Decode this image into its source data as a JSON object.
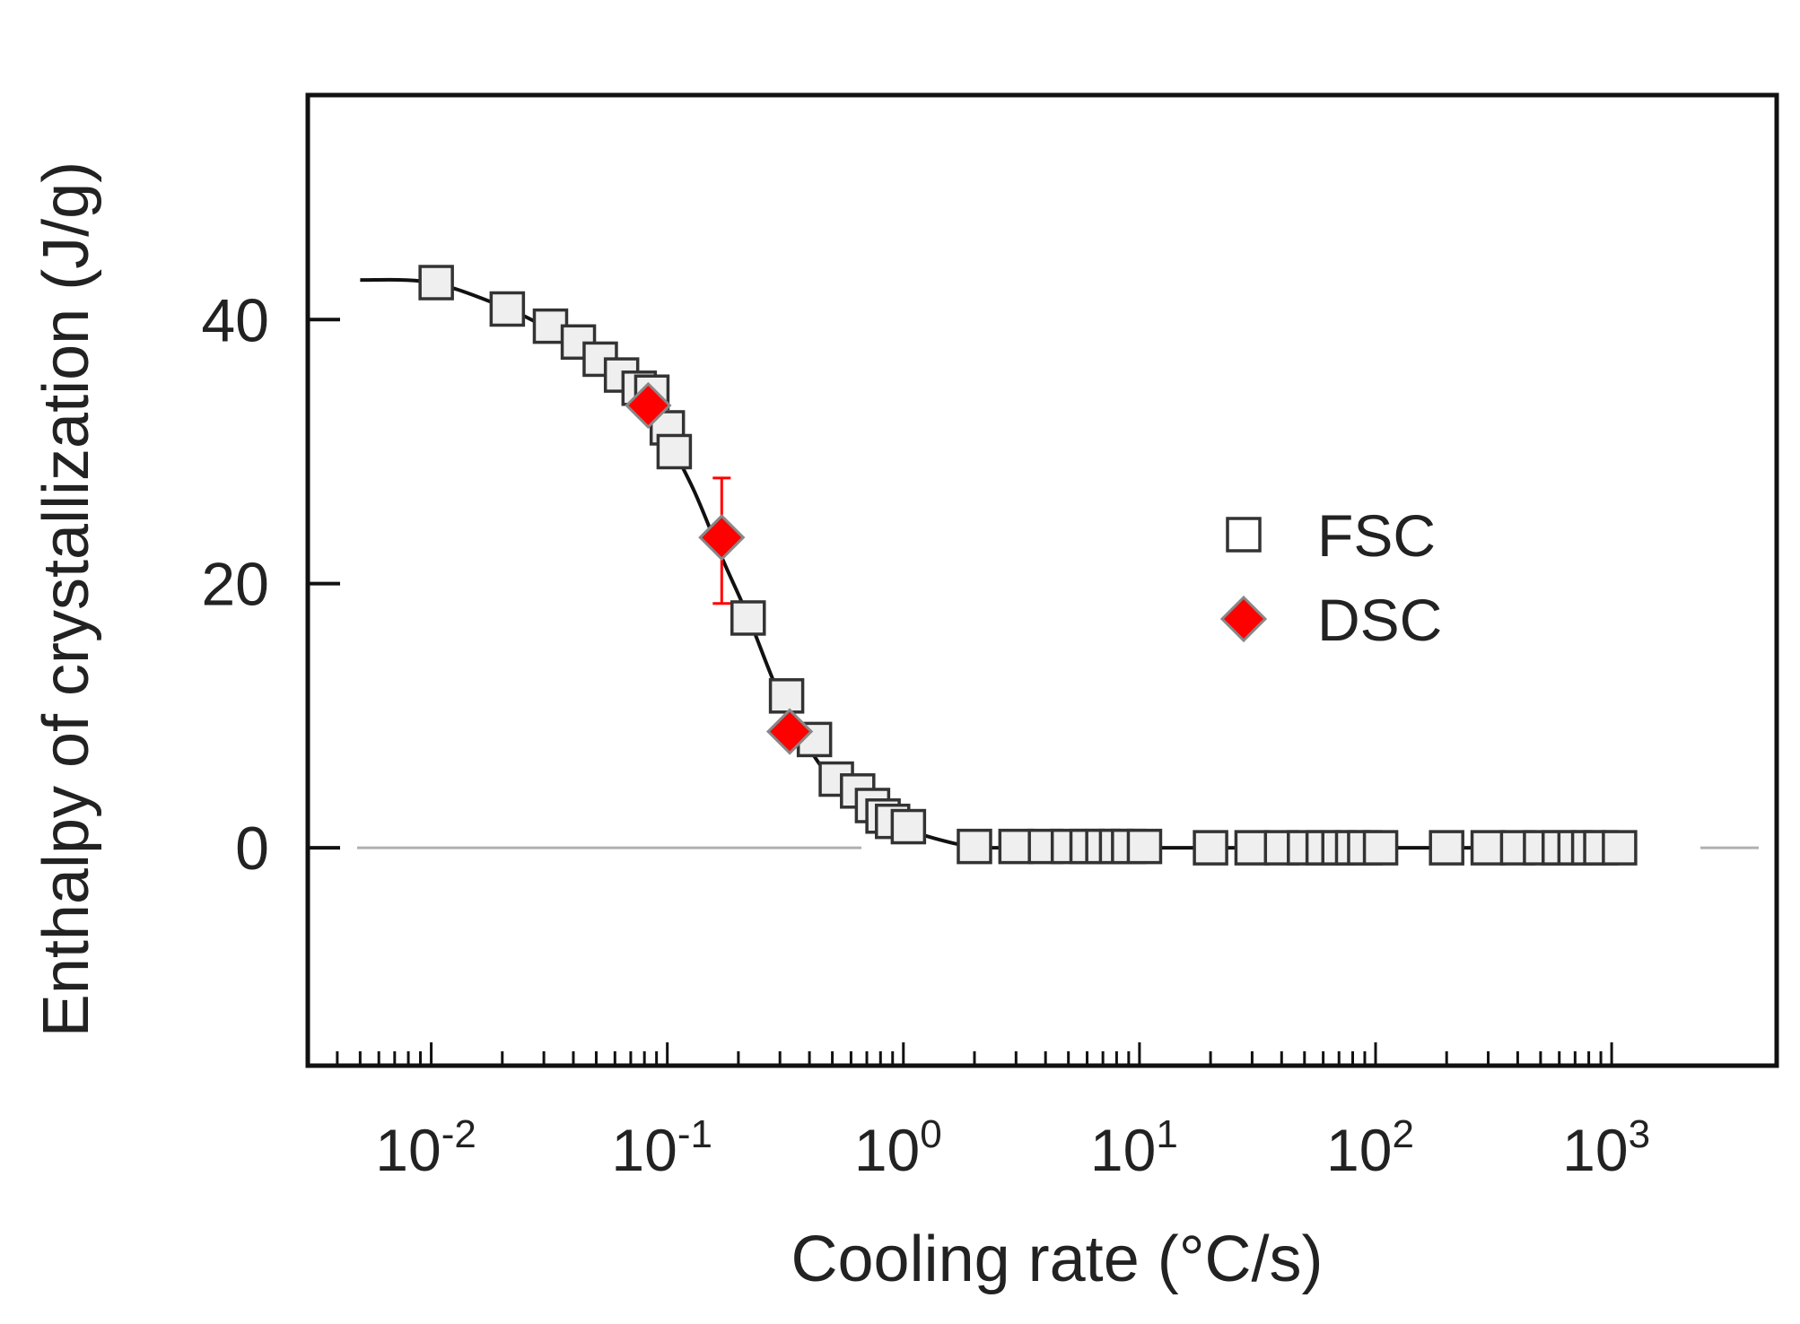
{
  "chart_data": {
    "type": "scatter",
    "xscale": "log",
    "xlabel": "Cooling rate (°C/s)",
    "ylabel": "Enthalpy of crystallization (J/g)",
    "xlim": [
      0.003,
      5000
    ],
    "ylim": [
      -16.5,
      57
    ],
    "x_ticks": [
      {
        "value": 0.01,
        "base": "10",
        "exp": "-2"
      },
      {
        "value": 0.1,
        "base": "10",
        "exp": "-1"
      },
      {
        "value": 1,
        "base": "10",
        "exp": "0"
      },
      {
        "value": 10,
        "base": "10",
        "exp": "1"
      },
      {
        "value": 100,
        "base": "10",
        "exp": "2"
      },
      {
        "value": 1000,
        "base": "10",
        "exp": "3"
      }
    ],
    "y_ticks": [
      {
        "value": 0,
        "label": "0"
      },
      {
        "value": 20,
        "label": "20"
      },
      {
        "value": 40,
        "label": "40"
      }
    ],
    "reference_line": {
      "y": 0,
      "color": "#b0b0b0"
    },
    "fit_curve": {
      "color": "#111111",
      "points": [
        [
          0.005,
          43.0
        ],
        [
          0.01,
          42.8
        ],
        [
          0.02,
          41.0
        ],
        [
          0.03,
          39.5
        ],
        [
          0.04,
          38.3
        ],
        [
          0.05,
          37.0
        ],
        [
          0.06,
          35.8
        ],
        [
          0.08,
          34.0
        ],
        [
          0.1,
          31.0
        ],
        [
          0.13,
          27.0
        ],
        [
          0.17,
          22.0
        ],
        [
          0.22,
          17.5
        ],
        [
          0.3,
          11.5
        ],
        [
          0.4,
          7.5
        ],
        [
          0.5,
          5.2
        ],
        [
          0.7,
          3.0
        ],
        [
          1.0,
          1.5
        ],
        [
          1.5,
          0.5
        ],
        [
          2.0,
          0.1
        ],
        [
          3.0,
          0.0
        ],
        [
          1000,
          0.0
        ]
      ]
    },
    "series": [
      {
        "name": "FSC",
        "marker": "square",
        "fill": "#efefef",
        "stroke": "#333333",
        "points": [
          [
            0.0105,
            42.8
          ],
          [
            0.021,
            40.8
          ],
          [
            0.032,
            39.5
          ],
          [
            0.042,
            38.3
          ],
          [
            0.052,
            37.0
          ],
          [
            0.064,
            35.8
          ],
          [
            0.076,
            34.8
          ],
          [
            0.086,
            34.5
          ],
          [
            0.1,
            31.8
          ],
          [
            0.107,
            30.0
          ],
          [
            0.22,
            17.4
          ],
          [
            0.32,
            11.5
          ],
          [
            0.42,
            8.2
          ],
          [
            0.52,
            5.2
          ],
          [
            0.64,
            4.3
          ],
          [
            0.74,
            3.2
          ],
          [
            0.82,
            2.4
          ],
          [
            0.9,
            2.0
          ],
          [
            1.05,
            1.6
          ],
          [
            2,
            0.1
          ],
          [
            3,
            0.1
          ],
          [
            4,
            0.1
          ],
          [
            5,
            0.1
          ],
          [
            6,
            0.1
          ],
          [
            7,
            0.1
          ],
          [
            8,
            0.1
          ],
          [
            9,
            0.1
          ],
          [
            10.5,
            0.1
          ],
          [
            20,
            0.0
          ],
          [
            30,
            0.0
          ],
          [
            40,
            0.0
          ],
          [
            50,
            0.0
          ],
          [
            60,
            0.0
          ],
          [
            70,
            0.0
          ],
          [
            80,
            0.0
          ],
          [
            90,
            0.0
          ],
          [
            105,
            0.0
          ],
          [
            200,
            0.0
          ],
          [
            300,
            0.0
          ],
          [
            400,
            0.0
          ],
          [
            500,
            0.0
          ],
          [
            600,
            0.0
          ],
          [
            700,
            0.0
          ],
          [
            800,
            0.0
          ],
          [
            900,
            0.0
          ],
          [
            1080,
            0.0
          ]
        ]
      },
      {
        "name": "DSC",
        "marker": "diamond",
        "fill": "#ff0000",
        "stroke": "#888888",
        "points": [
          {
            "x": 0.083,
            "y": 33.5
          },
          {
            "x": 0.17,
            "y": 23.5,
            "err_low": 18.5,
            "err_high": 28.0
          },
          {
            "x": 0.33,
            "y": 8.8
          }
        ]
      }
    ],
    "errorbar_color": "#ff0000",
    "legend": {
      "placement": "right",
      "entries": [
        {
          "label": "FSC",
          "marker": "square"
        },
        {
          "label": "DSC",
          "marker": "diamond"
        }
      ]
    }
  }
}
